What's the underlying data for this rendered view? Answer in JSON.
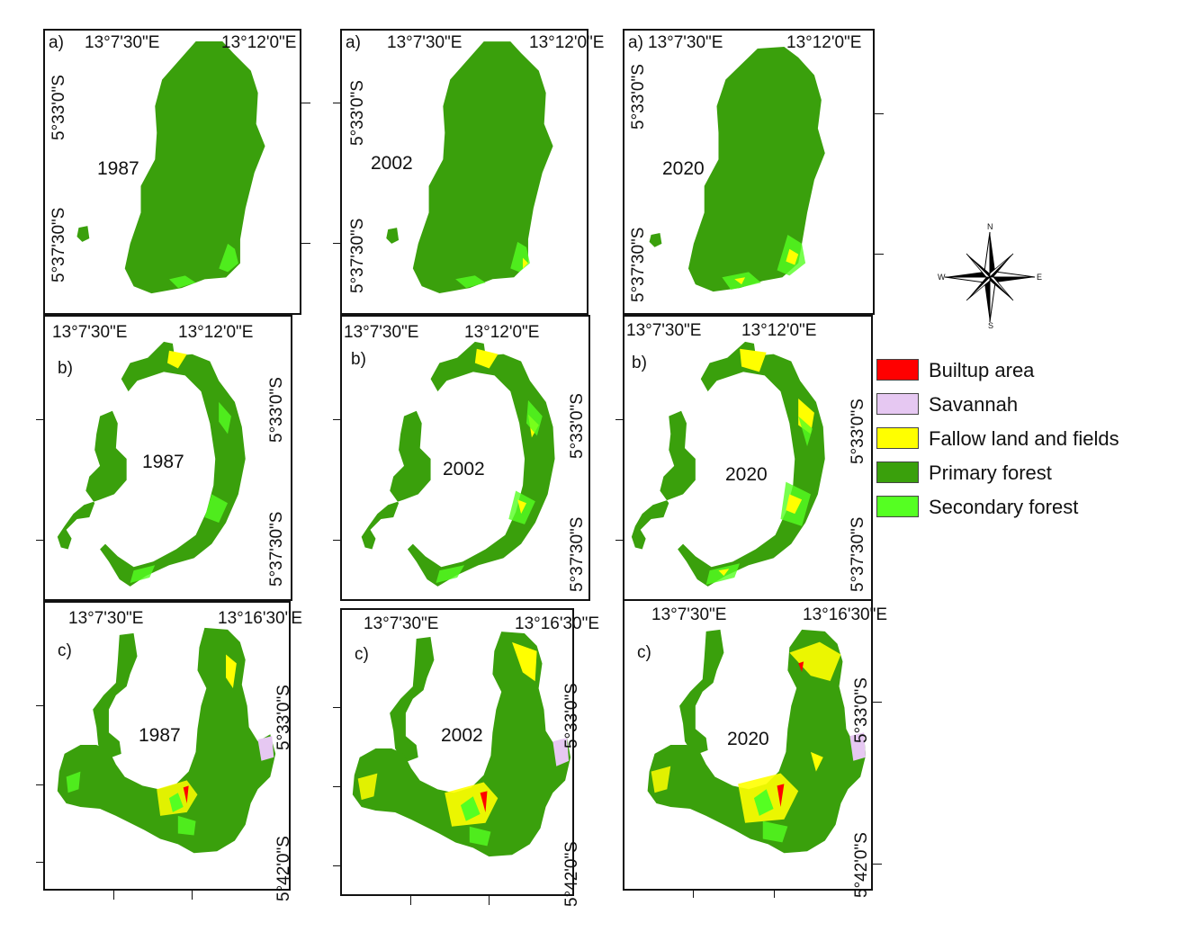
{
  "colors": {
    "builtup": "#ff0000",
    "savannah": "#e6c8f2",
    "fallow": "#ffff00",
    "primary": "#3aa00c",
    "secondary": "#55ff22"
  },
  "panels_row_a": [
    {
      "letter": "a)",
      "year": "1987",
      "lon1": "13°7'30\"E",
      "lon2": "13°12'0\"E",
      "lat1": "5°33'0\"S",
      "lat2": "5°37'30\"S"
    },
    {
      "letter": "a)",
      "year": "2002",
      "lon1": "13°7'30\"E",
      "lon2": "13°12'0\"E",
      "lat1": "5°33'0\"S",
      "lat2": "5°37'30\"S"
    },
    {
      "letter": "a)",
      "year": "2020",
      "lon1": "13°7'30\"E",
      "lon2": "13°12'0\"E",
      "lat1": "5°33'0\"S",
      "lat2": "5°37'30\"S"
    }
  ],
  "panels_row_b": [
    {
      "letter": "b)",
      "year": "1987",
      "lon1": "13°7'30\"E",
      "lon2": "13°12'0\"E",
      "lat1": "5°33'0\"S",
      "lat2": "5°37'30\"S"
    },
    {
      "letter": "b)",
      "year": "2002",
      "lon1": "13°7'30\"E",
      "lon2": "13°12'0\"E",
      "lat1": "5°33'0\"S",
      "lat2": "5°37'30\"S"
    },
    {
      "letter": "b)",
      "year": "2020",
      "lon1": "13°7'30\"E",
      "lon2": "13°12'0\"E",
      "lat1": "5°33'0\"S",
      "lat2": "5°37'30\"S"
    }
  ],
  "panels_row_c": [
    {
      "letter": "c)",
      "year": "1987",
      "lon1": "13°7'30\"E",
      "lon2": "13°16'30\"E",
      "lat1": "5°33'0\"S",
      "lat2": "5°42'0\"S"
    },
    {
      "letter": "c)",
      "year": "2002",
      "lon1": "13°7'30\"E",
      "lon2": "13°16'30\"E",
      "lat1": "5°33'0\"S",
      "lat2": "5°42'0\"S"
    },
    {
      "letter": "c)",
      "year": "2020",
      "lon1": "13°7'30\"E",
      "lon2": "13°16'30\"E",
      "lat1": "5°33'0\"S",
      "lat2": "5°42'0\"S"
    }
  ],
  "legend": [
    {
      "label": "Builtup area",
      "color": "#ff0000"
    },
    {
      "label": "Savannah",
      "color": "#e6c8f2"
    },
    {
      "label": "Fallow land and fields",
      "color": "#ffff00"
    },
    {
      "label": "Primary forest",
      "color": "#3aa00c"
    },
    {
      "label": "Secondary forest",
      "color": "#55ff22"
    }
  ],
  "compass": {
    "n": "N",
    "s": "S",
    "e": "E",
    "w": "W"
  }
}
